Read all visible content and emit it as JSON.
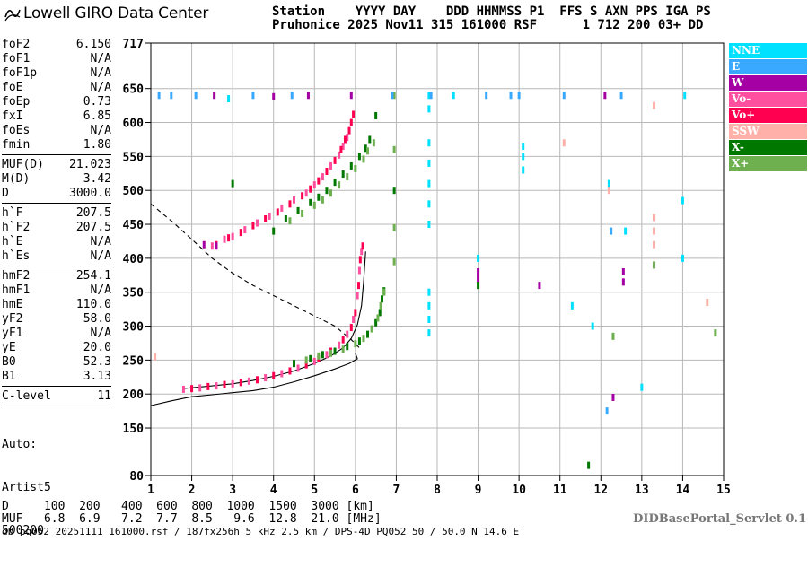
{
  "app": {
    "title": "Lowell GIRO Data Center",
    "servlet": "DIDBasePortal_Servlet 0.1",
    "footer": "db pq052 20251111 161000.rsf / 187fx256h 5 kHz 2.5 km / DPS-4D PQ052 50 / 50.0 N 14.6 E"
  },
  "header": {
    "line1": "Station    YYYY DAY    DDD HHMMSS P1  FFS S AXN PPS IGA PS",
    "line2": "Pruhonice 2025 Nov11 315 161000 RSF      1 712 200 03+ DD"
  },
  "params": {
    "group1": [
      {
        "label": "foF2",
        "value": "6.150"
      },
      {
        "label": "foF1",
        "value": "N/A"
      },
      {
        "label": "foF1p",
        "value": "N/A"
      },
      {
        "label": "foE",
        "value": "N/A"
      },
      {
        "label": "foEp",
        "value": "0.73"
      },
      {
        "label": "fxI",
        "value": "6.85"
      },
      {
        "label": "foEs",
        "value": "N/A"
      },
      {
        "label": "fmin",
        "value": "1.80"
      }
    ],
    "group2": [
      {
        "label": "MUF(D)",
        "value": "21.023"
      },
      {
        "label": "M(D)",
        "value": "3.42"
      },
      {
        "label": "D",
        "value": "3000.0"
      }
    ],
    "group3": [
      {
        "label": "h`F",
        "value": "207.5"
      },
      {
        "label": "h`F2",
        "value": "207.5"
      },
      {
        "label": "h`E",
        "value": "N/A"
      },
      {
        "label": "h`Es",
        "value": "N/A"
      }
    ],
    "group4": [
      {
        "label": "hmF2",
        "value": "254.1"
      },
      {
        "label": "hmF1",
        "value": "N/A"
      },
      {
        "label": "hmE",
        "value": "110.0"
      },
      {
        "label": "yF2",
        "value": "58.0"
      },
      {
        "label": "yF1",
        "value": "N/A"
      },
      {
        "label": "yE",
        "value": "20.0"
      },
      {
        "label": "B0",
        "value": "52.3"
      },
      {
        "label": "B1",
        "value": "3.13"
      }
    ],
    "group5": [
      {
        "label": "C-level",
        "value": "11"
      }
    ],
    "auto": [
      "Auto:",
      "Artist5",
      "500200"
    ]
  },
  "legend": [
    {
      "label": "NNE",
      "color": "#00e0ff"
    },
    {
      "label": "E",
      "color": "#39a8ff"
    },
    {
      "label": "W",
      "color": "#a400a4"
    },
    {
      "label": "Vo-",
      "color": "#ff50a0"
    },
    {
      "label": "Vo+",
      "color": "#ff0050"
    },
    {
      "label": "SSW",
      "color": "#ffb0a8"
    },
    {
      "label": "X-",
      "color": "#007800"
    },
    {
      "label": "X+",
      "color": "#6eb050"
    }
  ],
  "muf_table": {
    "row1": "D     100  200   400  600  800  1000  1500  3000 [km]",
    "row2": "MUF   6.8  6.9   7.2  7.7  8.5   9.6  12.8  21.0 [MHz]"
  },
  "chart_data": {
    "type": "scatter",
    "xlim": [
      1,
      15
    ],
    "ylim": [
      80,
      717
    ],
    "x_ticks": [
      1,
      2,
      3,
      4,
      5,
      6,
      7,
      8,
      9,
      10,
      11,
      12,
      13,
      14,
      15
    ],
    "y_ticks": [
      80,
      150,
      200,
      250,
      300,
      350,
      400,
      450,
      500,
      550,
      600,
      650,
      717
    ],
    "grid": true,
    "legend_position": "right",
    "series": [
      {
        "name": "Vo-",
        "color": "#ff50a0",
        "points": [
          [
            2.5,
            418
          ],
          [
            2.8,
            428
          ],
          [
            3.0,
            432
          ],
          [
            3.3,
            442
          ],
          [
            3.6,
            452
          ],
          [
            3.9,
            462
          ],
          [
            4.2,
            474
          ],
          [
            4.5,
            486
          ],
          [
            4.8,
            496
          ],
          [
            5.0,
            508
          ],
          [
            5.2,
            520
          ],
          [
            5.4,
            536
          ],
          [
            5.6,
            552
          ],
          [
            5.7,
            565
          ],
          [
            5.8,
            578
          ],
          [
            1.8,
            207
          ],
          [
            2.2,
            209
          ],
          [
            2.6,
            212
          ],
          [
            3.0,
            215
          ],
          [
            3.4,
            219
          ],
          [
            3.8,
            224
          ],
          [
            4.2,
            230
          ],
          [
            4.6,
            238
          ],
          [
            5.0,
            248
          ],
          [
            5.3,
            258
          ],
          [
            5.6,
            272
          ],
          [
            5.8,
            288
          ],
          [
            5.95,
            310
          ],
          [
            6.05,
            345
          ],
          [
            6.1,
            382
          ],
          [
            6.15,
            410
          ]
        ]
      },
      {
        "name": "Vo+",
        "color": "#ff0050",
        "points": [
          [
            2.6,
            420
          ],
          [
            2.9,
            430
          ],
          [
            3.2,
            438
          ],
          [
            3.5,
            448
          ],
          [
            3.8,
            458
          ],
          [
            4.1,
            468
          ],
          [
            4.4,
            480
          ],
          [
            4.7,
            492
          ],
          [
            4.9,
            502
          ],
          [
            5.1,
            514
          ],
          [
            5.3,
            528
          ],
          [
            5.5,
            544
          ],
          [
            5.65,
            560
          ],
          [
            5.75,
            575
          ],
          [
            5.85,
            588
          ],
          [
            5.9,
            600
          ],
          [
            5.95,
            612
          ],
          [
            2.0,
            208
          ],
          [
            2.4,
            211
          ],
          [
            2.8,
            214
          ],
          [
            3.2,
            217
          ],
          [
            3.6,
            221
          ],
          [
            4.0,
            227
          ],
          [
            4.4,
            234
          ],
          [
            4.8,
            243
          ],
          [
            5.1,
            252
          ],
          [
            5.4,
            263
          ],
          [
            5.7,
            280
          ],
          [
            5.9,
            298
          ],
          [
            6.0,
            320
          ],
          [
            6.08,
            360
          ],
          [
            6.12,
            398
          ],
          [
            6.18,
            418
          ]
        ]
      },
      {
        "name": "W",
        "color": "#a400a4",
        "points": [
          [
            2.3,
            420
          ],
          [
            2.6,
            418
          ],
          [
            5.9,
            640
          ],
          [
            4.0,
            638
          ],
          [
            4.85,
            640
          ],
          [
            2.55,
            640
          ],
          [
            9.0,
            380
          ],
          [
            9.0,
            370
          ],
          [
            12.55,
            365
          ],
          [
            12.55,
            380
          ],
          [
            10.5,
            360
          ],
          [
            12.3,
            195
          ],
          [
            12.1,
            640
          ]
        ]
      },
      {
        "name": "X-",
        "color": "#007800",
        "points": [
          [
            4.3,
            458
          ],
          [
            4.6,
            470
          ],
          [
            4.9,
            482
          ],
          [
            5.1,
            490
          ],
          [
            5.3,
            500
          ],
          [
            5.5,
            512
          ],
          [
            5.7,
            524
          ],
          [
            5.9,
            536
          ],
          [
            6.1,
            550
          ],
          [
            6.25,
            562
          ],
          [
            6.35,
            575
          ],
          [
            6.5,
            610
          ],
          [
            4.5,
            245
          ],
          [
            4.9,
            252
          ],
          [
            5.2,
            258
          ],
          [
            5.5,
            263
          ],
          [
            5.8,
            270
          ],
          [
            6.1,
            278
          ],
          [
            6.3,
            288
          ],
          [
            6.5,
            305
          ],
          [
            6.6,
            320
          ],
          [
            6.65,
            340
          ],
          [
            6.7,
            352
          ],
          [
            3.0,
            510
          ],
          [
            4.0,
            440
          ],
          [
            6.95,
            500
          ],
          [
            9.0,
            360
          ],
          [
            11.7,
            95
          ],
          [
            13.3,
            460
          ]
        ]
      },
      {
        "name": "X+",
        "color": "#6eb050",
        "points": [
          [
            4.4,
            455
          ],
          [
            4.7,
            466
          ],
          [
            5.0,
            478
          ],
          [
            5.2,
            486
          ],
          [
            5.4,
            496
          ],
          [
            5.6,
            508
          ],
          [
            5.8,
            520
          ],
          [
            6.0,
            532
          ],
          [
            6.2,
            546
          ],
          [
            6.3,
            558
          ],
          [
            6.45,
            570
          ],
          [
            4.8,
            250
          ],
          [
            5.1,
            256
          ],
          [
            5.4,
            260
          ],
          [
            5.7,
            266
          ],
          [
            6.0,
            274
          ],
          [
            6.2,
            282
          ],
          [
            6.4,
            296
          ],
          [
            6.55,
            312
          ],
          [
            6.62,
            330
          ],
          [
            6.7,
            350
          ],
          [
            6.95,
            395
          ],
          [
            6.95,
            445
          ],
          [
            6.95,
            560
          ],
          [
            12.3,
            285
          ],
          [
            13.3,
            390
          ],
          [
            14.8,
            290
          ],
          [
            6.95,
            640
          ]
        ]
      },
      {
        "name": "NNE",
        "color": "#00e0ff",
        "points": [
          [
            7.8,
            290
          ],
          [
            7.8,
            310
          ],
          [
            7.8,
            330
          ],
          [
            7.8,
            350
          ],
          [
            7.8,
            450
          ],
          [
            7.8,
            480
          ],
          [
            7.8,
            510
          ],
          [
            7.8,
            540
          ],
          [
            7.8,
            570
          ],
          [
            7.8,
            620
          ],
          [
            7.8,
            640
          ],
          [
            10.1,
            530
          ],
          [
            10.1,
            550
          ],
          [
            10.1,
            565
          ],
          [
            9.0,
            400
          ],
          [
            12.6,
            440
          ],
          [
            13.0,
            210
          ],
          [
            14.0,
            485
          ],
          [
            14.0,
            400
          ],
          [
            2.9,
            635
          ],
          [
            14.05,
            640
          ],
          [
            8.4,
            640
          ],
          [
            11.3,
            330
          ],
          [
            11.8,
            300
          ],
          [
            12.2,
            510
          ]
        ]
      },
      {
        "name": "E",
        "color": "#39a8ff",
        "points": [
          [
            1.2,
            640
          ],
          [
            1.5,
            640
          ],
          [
            2.1,
            640
          ],
          [
            3.5,
            640
          ],
          [
            4.45,
            640
          ],
          [
            6.9,
            640
          ],
          [
            9.2,
            640
          ],
          [
            9.8,
            640
          ],
          [
            11.1,
            640
          ],
          [
            12.5,
            640
          ],
          [
            12.25,
            440
          ],
          [
            12.15,
            175
          ],
          [
            10.0,
            640
          ],
          [
            7.85,
            640
          ]
        ]
      },
      {
        "name": "SSW",
        "color": "#ffb0a8",
        "points": [
          [
            13.3,
            420
          ],
          [
            13.3,
            440
          ],
          [
            13.3,
            460
          ],
          [
            13.3,
            625
          ],
          [
            12.2,
            500
          ],
          [
            11.1,
            570
          ],
          [
            14.6,
            335
          ],
          [
            1.1,
            255
          ]
        ]
      }
    ],
    "curves": [
      {
        "name": "profile-upper",
        "points": [
          [
            1.8,
            208
          ],
          [
            2.5,
            212
          ],
          [
            3.0,
            215
          ],
          [
            3.5,
            220
          ],
          [
            4.0,
            226
          ],
          [
            4.5,
            234
          ],
          [
            5.0,
            245
          ],
          [
            5.4,
            256
          ],
          [
            5.7,
            268
          ],
          [
            5.9,
            282
          ],
          [
            6.05,
            302
          ],
          [
            6.15,
            330
          ],
          [
            6.2,
            365
          ],
          [
            6.25,
            410
          ]
        ]
      },
      {
        "name": "profile-lower",
        "points": [
          [
            1.0,
            183
          ],
          [
            1.5,
            190
          ],
          [
            2.0,
            196
          ],
          [
            2.5,
            199
          ],
          [
            3.0,
            202
          ],
          [
            3.5,
            205
          ],
          [
            4.0,
            210
          ],
          [
            4.5,
            218
          ],
          [
            5.0,
            227
          ],
          [
            5.5,
            237
          ],
          [
            5.85,
            245
          ],
          [
            6.05,
            252
          ],
          [
            6.0,
            260
          ]
        ]
      },
      {
        "name": "muf-dashed",
        "dashed": true,
        "points": [
          [
            1.0,
            480
          ],
          [
            1.5,
            455
          ],
          [
            2.0,
            428
          ],
          [
            2.5,
            400
          ],
          [
            3.0,
            378
          ],
          [
            3.5,
            360
          ],
          [
            4.0,
            345
          ],
          [
            4.5,
            330
          ],
          [
            5.0,
            315
          ],
          [
            5.5,
            300
          ],
          [
            5.9,
            280
          ],
          [
            6.15,
            265
          ]
        ]
      }
    ]
  }
}
